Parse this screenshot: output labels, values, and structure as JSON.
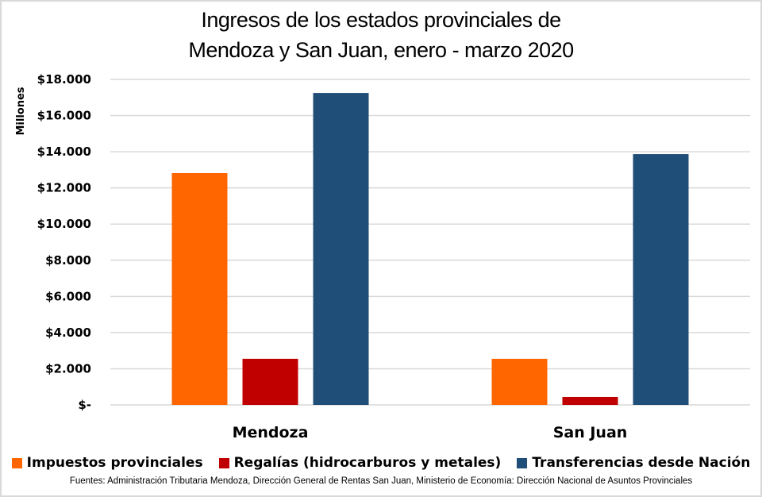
{
  "chart_data": {
    "type": "bar",
    "title_line1": "Ingresos de los estados provinciales de",
    "title_line2": "Mendoza y San Juan, enero - marzo 2020",
    "xlabel": "",
    "ylabel": "Millones",
    "categories": [
      "Mendoza",
      "San Juan"
    ],
    "series": [
      {
        "name": "Impuestos provinciales",
        "color": "#ff6600",
        "values": [
          12820,
          2550
        ]
      },
      {
        "name": "Regalías (hidrocarburos y metales)",
        "color": "#c00000",
        "values": [
          2550,
          440
        ]
      },
      {
        "name": "Transferencias desde Nación",
        "color": "#1f4e79",
        "values": [
          17250,
          13870
        ]
      }
    ],
    "ylim": [
      0,
      18000
    ],
    "yticks": [
      0,
      2000,
      4000,
      6000,
      8000,
      10000,
      12000,
      14000,
      16000,
      18000
    ],
    "ytick_labels": [
      "$-",
      "$2.000",
      "$4.000",
      "$6.000",
      "$8.000",
      "$10.000",
      "$12.000",
      "$14.000",
      "$16.000",
      "$18.000"
    ],
    "grid": true,
    "gridline_color": "#d9d9d9",
    "legend_position": "bottom"
  },
  "source_note": "Fuentes: Administración Tributaria Mendoza, Dirección General de Rentas San Juan, Ministerio de Economía: Dirección Nacional de Asuntos Provinciales"
}
